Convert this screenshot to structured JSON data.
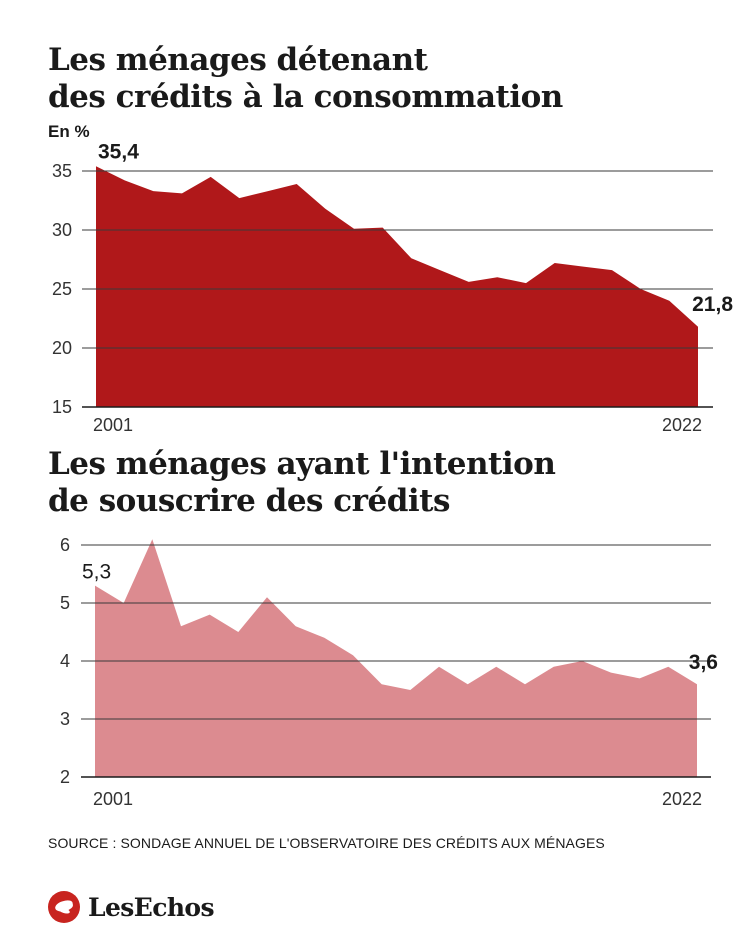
{
  "chart_data": [
    {
      "type": "area",
      "title": "Les ménages détenant\ndes crédits à la consommation",
      "unit_label": "En %",
      "x_start_label": "2001",
      "x_end_label": "2022",
      "ylim": [
        15,
        35
      ],
      "yticks": [
        35,
        30,
        25,
        20,
        15
      ],
      "grid": true,
      "color": "#b0181a",
      "annotations": [
        {
          "text": "35,4",
          "at": "first"
        },
        {
          "text": "21,8",
          "at": "last"
        }
      ],
      "x": [
        2001,
        2002,
        2003,
        2004,
        2005,
        2006,
        2007,
        2008,
        2009,
        2010,
        2011,
        2012,
        2013,
        2014,
        2015,
        2016,
        2017,
        2018,
        2019,
        2020,
        2021,
        2022
      ],
      "values": [
        35.4,
        34.2,
        33.3,
        33.1,
        34.5,
        32.7,
        33.3,
        33.9,
        31.8,
        30.1,
        30.2,
        27.6,
        26.6,
        25.6,
        26.0,
        25.5,
        27.2,
        26.9,
        26.6,
        25.0,
        24.0,
        21.8
      ]
    },
    {
      "type": "area",
      "title": "Les ménages ayant l'intention\nde souscrire des crédits",
      "x_start_label": "2001",
      "x_end_label": "2022",
      "ylim": [
        2,
        6
      ],
      "yticks": [
        6,
        5,
        4,
        3,
        2
      ],
      "grid": true,
      "color": "#dc8b90",
      "annotations": [
        {
          "text": "5,3",
          "at": "first"
        },
        {
          "text": "3,6",
          "at": "last"
        }
      ],
      "x": [
        2001,
        2002,
        2003,
        2004,
        2005,
        2006,
        2007,
        2008,
        2009,
        2010,
        2011,
        2012,
        2013,
        2014,
        2015,
        2016,
        2017,
        2018,
        2019,
        2020,
        2021,
        2022
      ],
      "values": [
        5.3,
        5.0,
        6.1,
        4.6,
        4.8,
        4.5,
        5.1,
        4.6,
        4.4,
        4.1,
        3.6,
        3.5,
        3.9,
        3.6,
        3.9,
        3.6,
        3.9,
        4.0,
        3.8,
        3.7,
        3.9,
        3.6
      ]
    }
  ],
  "source": "SOURCE : SONDAGE ANNUEL DE L'OBSERVATOIRE DES CRÉDITS AUX MÉNAGES",
  "logo": {
    "text": "LesEchos",
    "icon": "echos-bird-icon"
  }
}
